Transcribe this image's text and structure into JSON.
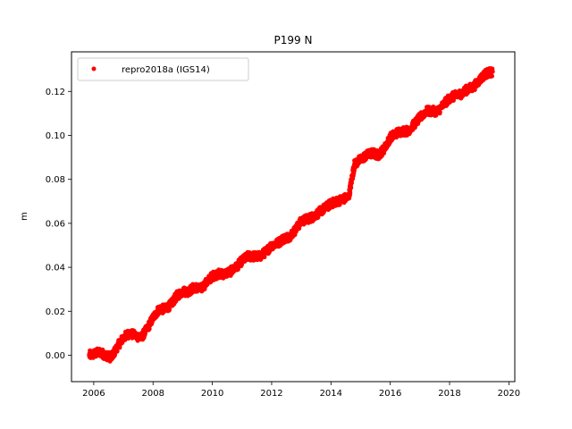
{
  "chart_data": {
    "type": "scatter",
    "title": "P199 N",
    "xlabel": "",
    "ylabel": "m",
    "xlim": [
      2005.25,
      2020.2
    ],
    "ylim": [
      -0.012,
      0.138
    ],
    "xticks": [
      2006,
      2008,
      2010,
      2012,
      2014,
      2016,
      2018,
      2020
    ],
    "xtick_labels": [
      "2006",
      "2008",
      "2010",
      "2012",
      "2014",
      "2016",
      "2018",
      "2020"
    ],
    "yticks": [
      0.0,
      0.02,
      0.04,
      0.06,
      0.08,
      0.1,
      0.12
    ],
    "ytick_labels": [
      "0.00",
      "0.02",
      "0.04",
      "0.06",
      "0.08",
      "0.10",
      "0.12"
    ],
    "grid": false,
    "legend": {
      "placement": "upper-left",
      "label": "repro2018a (IGS14)"
    },
    "series": [
      {
        "name": "repro2018a (IGS14)",
        "color": "#ff0000",
        "marker": "dot",
        "x": [
          2005.85,
          2006.0,
          2006.2,
          2006.4,
          2006.6,
          2006.8,
          2007.0,
          2007.2,
          2007.4,
          2007.6,
          2007.8,
          2008.0,
          2008.2,
          2008.4,
          2008.6,
          2008.8,
          2009.0,
          2009.2,
          2009.4,
          2009.6,
          2009.8,
          2010.0,
          2010.2,
          2010.4,
          2010.6,
          2010.8,
          2011.0,
          2011.2,
          2011.4,
          2011.6,
          2011.8,
          2012.0,
          2012.2,
          2012.4,
          2012.6,
          2012.8,
          2013.0,
          2013.2,
          2013.4,
          2013.6,
          2013.8,
          2014.0,
          2014.2,
          2014.4,
          2014.6,
          2014.7,
          2014.8,
          2015.0,
          2015.2,
          2015.4,
          2015.6,
          2015.8,
          2016.0,
          2016.2,
          2016.4,
          2016.6,
          2016.8,
          2017.0,
          2017.2,
          2017.4,
          2017.6,
          2017.8,
          2018.0,
          2018.2,
          2018.4,
          2018.6,
          2018.8,
          2019.0,
          2019.2,
          2019.45
        ],
        "y": [
          0.0,
          0.0005,
          0.0015,
          0.0,
          -0.001,
          0.004,
          0.008,
          0.01,
          0.009,
          0.008,
          0.012,
          0.017,
          0.021,
          0.021,
          0.023,
          0.027,
          0.029,
          0.029,
          0.031,
          0.03,
          0.033,
          0.036,
          0.037,
          0.037,
          0.038,
          0.04,
          0.043,
          0.045,
          0.045,
          0.045,
          0.047,
          0.05,
          0.051,
          0.053,
          0.054,
          0.057,
          0.061,
          0.062,
          0.063,
          0.065,
          0.067,
          0.069,
          0.07,
          0.071,
          0.072,
          0.08,
          0.087,
          0.089,
          0.091,
          0.092,
          0.091,
          0.094,
          0.099,
          0.101,
          0.102,
          0.102,
          0.105,
          0.108,
          0.111,
          0.111,
          0.111,
          0.114,
          0.117,
          0.118,
          0.119,
          0.121,
          0.122,
          0.125,
          0.128,
          0.129
        ]
      }
    ]
  }
}
